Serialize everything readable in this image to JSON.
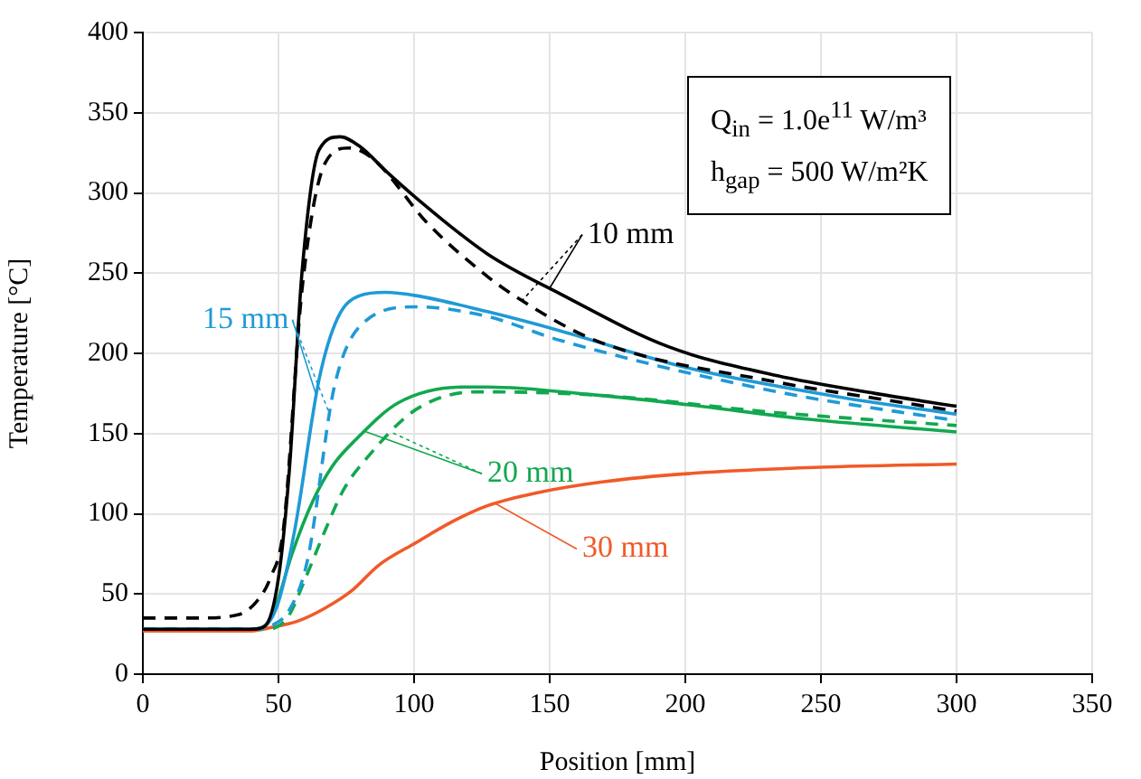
{
  "chart_data": {
    "type": "line",
    "xlabel": "Position [mm]",
    "ylabel": "Temperature [°C]",
    "xlim": [
      0,
      350
    ],
    "ylim": [
      0,
      400
    ],
    "xticks": [
      0,
      50,
      100,
      150,
      200,
      250,
      300,
      350
    ],
    "yticks": [
      0,
      50,
      100,
      150,
      200,
      250,
      300,
      350,
      400
    ],
    "grid": true,
    "legend": "bottom",
    "marker": "none",
    "annotations": [
      "Q$_{in}$ = 1.0e$^{11}$ W/m³",
      "h$_{gap}$ = 500 W/m²K"
    ],
    "series": [
      {
        "name": "10 mm",
        "color": "#000000",
        "line_style": "solid",
        "x": [
          0,
          20,
          40,
          45,
          50,
          54,
          58.7,
          65,
          72.7,
          80,
          90,
          100.7,
          127,
          154,
          194,
          234,
          270,
          300
        ],
        "values": [
          28,
          28,
          28,
          30,
          60,
          127,
          251,
          327,
          335,
          329,
          313,
          297,
          262,
          237,
          204,
          186,
          175,
          167
        ]
      },
      {
        "color": "#000000",
        "line_style": "dashed",
        "x": [
          0,
          20,
          35,
          41.8,
          47,
          51.8,
          58.7,
          67.3,
          76,
          85,
          105,
          127,
          136,
          167,
          234,
          270,
          300
        ],
        "values": [
          35,
          35,
          37,
          45,
          60,
          90,
          240,
          319,
          328,
          321,
          281,
          248,
          237,
          208,
          182,
          172,
          164
        ]
      },
      {
        "name": "15 mm",
        "color": "#1f9ad6",
        "line_style": "solid",
        "x": [
          0,
          20,
          40,
          45,
          50,
          56,
          65,
          71.8,
          80,
          89.5,
          100.7,
          127,
          154,
          200.7,
          256,
          300
        ],
        "values": [
          28,
          28,
          28,
          30,
          45,
          90,
          184,
          222,
          236,
          238,
          236,
          226,
          214,
          191,
          173,
          162
        ]
      },
      {
        "color": "#1f9ad6",
        "line_style": "dashed",
        "x": [
          0,
          20,
          40,
          47,
          54,
          60.7,
          70.7,
          82.7,
          100.7,
          127,
          154,
          234,
          300
        ],
        "values": [
          28,
          28,
          28,
          30,
          40,
          71,
          180,
          221,
          229,
          223,
          208,
          176,
          158
        ]
      },
      {
        "name": "20 mm",
        "color": "#11a84f",
        "line_style": "solid",
        "x": [
          40,
          45,
          49.5,
          55,
          62.7,
          70,
          78.4,
          94,
          118.4,
          127,
          167,
          200.7,
          245,
          300
        ],
        "values": [
          28,
          30,
          45,
          75,
          108,
          130,
          146,
          169,
          179,
          179,
          174,
          168,
          159,
          151
        ]
      },
      {
        "color": "#11a84f",
        "line_style": "dashed",
        "x": [
          0,
          20,
          45,
          50,
          54,
          60,
          67.3,
          74,
          82.7,
          100.7,
          123,
          167,
          234,
          300
        ],
        "values": [
          28,
          28,
          28,
          30,
          37,
          60,
          90,
          115,
          135,
          165,
          176,
          174,
          163,
          155
        ]
      },
      {
        "name": "30 mm",
        "color": "#f05a28",
        "line_style": "solid",
        "x": [
          0,
          20,
          40,
          47,
          57,
          67,
          77,
          87,
          100.7,
          114,
          127,
          145,
          170,
          200.7,
          250,
          300
        ],
        "values": [
          27,
          27,
          27,
          29,
          33,
          41,
          52,
          68,
          82,
          95,
          105,
          113,
          120,
          125,
          129,
          131
        ]
      }
    ]
  }
}
